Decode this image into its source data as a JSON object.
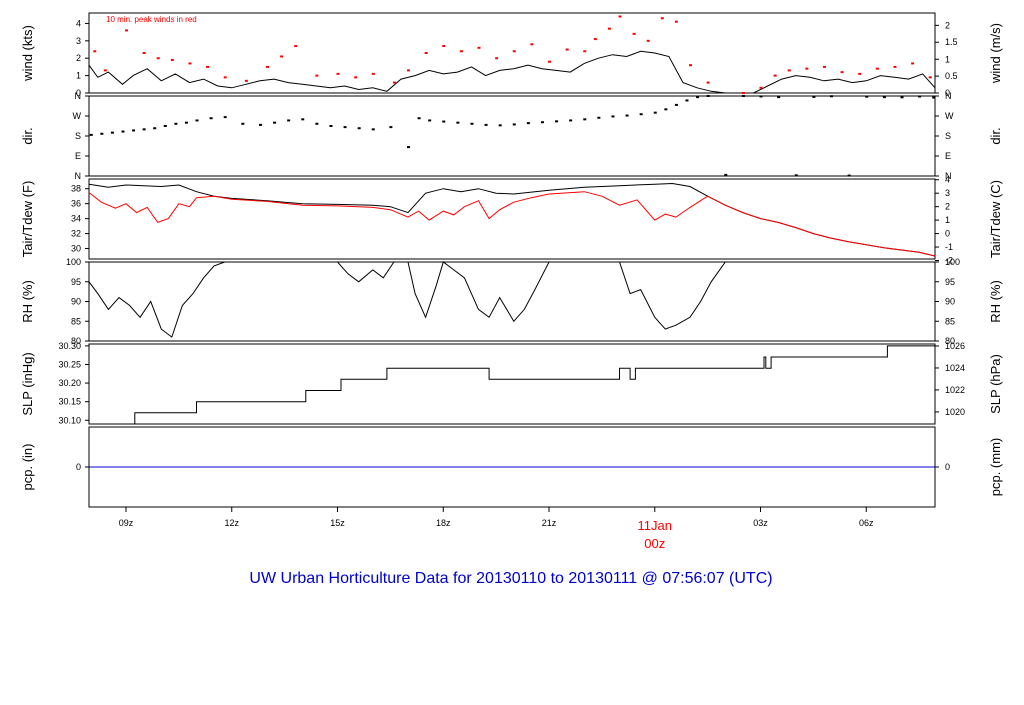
{
  "title": "UW Urban Horticulture Data for 20130110  to  20130111 @ 07:56:07  (UTC)",
  "colors": {
    "primary": "#000000",
    "secondary": "#ff0000",
    "title": "#0000cc",
    "precip": "#0000cc"
  },
  "x_axis": {
    "range_hours": [
      7.95,
      31.95
    ],
    "ticks": [
      {
        "hour": 9,
        "label": "09z"
      },
      {
        "hour": 12,
        "label": "12z"
      },
      {
        "hour": 15,
        "label": "15z"
      },
      {
        "hour": 18,
        "label": "18z"
      },
      {
        "hour": 21,
        "label": "21z"
      },
      {
        "hour": 24,
        "label": "00z"
      },
      {
        "hour": 27,
        "label": "03z"
      },
      {
        "hour": 30,
        "label": "06z"
      }
    ],
    "date_marker": {
      "hour": 24,
      "label": "11Jan",
      "sublabel": "00z"
    }
  },
  "chart_data": [
    {
      "id": "wind",
      "type": "line",
      "left_label": "wind (kts)",
      "right_label": "wind (m/s)",
      "annotation": "10 min. peak winds in red",
      "ylim": [
        0,
        4.6
      ],
      "left_ticks": [
        0,
        1,
        2,
        3,
        4
      ],
      "right_ticks": [
        {
          "value": 0,
          "label": "0"
        },
        {
          "value": 0.97,
          "label": "0.5"
        },
        {
          "value": 1.94,
          "label": "1"
        },
        {
          "value": 2.92,
          "label": "1.5"
        },
        {
          "value": 3.89,
          "label": "2"
        }
      ],
      "series": [
        {
          "role": "sustained",
          "style": "line",
          "x": [
            7.95,
            8.2,
            8.5,
            8.9,
            9.2,
            9.6,
            10.0,
            10.4,
            10.8,
            11.2,
            11.6,
            12.0,
            12.4,
            12.8,
            13.2,
            13.6,
            14.0,
            14.4,
            14.8,
            15.2,
            15.6,
            16.0,
            16.4,
            16.8,
            17.2,
            17.6,
            18.0,
            18.4,
            18.8,
            19.2,
            19.6,
            20.0,
            20.4,
            20.8,
            21.2,
            21.6,
            22.0,
            22.4,
            22.8,
            23.2,
            23.6,
            24.0,
            24.4,
            24.8,
            25.2,
            25.6,
            26.0,
            26.4,
            26.8,
            27.2,
            27.6,
            28.0,
            28.4,
            28.8,
            29.2,
            29.6,
            30.0,
            30.4,
            30.8,
            31.2,
            31.6,
            31.95
          ],
          "values": [
            1.6,
            0.9,
            1.2,
            0.5,
            1.0,
            1.4,
            0.7,
            1.1,
            0.6,
            0.8,
            0.4,
            0.3,
            0.5,
            0.7,
            0.8,
            0.6,
            0.5,
            0.4,
            0.3,
            0.4,
            0.2,
            0.3,
            0.1,
            0.8,
            1.0,
            1.3,
            1.1,
            1.2,
            1.5,
            1.0,
            1.3,
            1.4,
            1.6,
            1.4,
            1.3,
            1.2,
            1.7,
            2.0,
            2.2,
            2.1,
            2.4,
            2.3,
            2.1,
            0.6,
            0.3,
            0.1,
            0.0,
            0.0,
            0.0,
            0.4,
            0.8,
            1.0,
            0.9,
            0.7,
            0.8,
            0.6,
            0.7,
            1.0,
            0.9,
            0.8,
            1.1,
            0.3
          ]
        },
        {
          "role": "peak",
          "style": "points",
          "x": [
            8.1,
            8.4,
            9.0,
            9.5,
            9.9,
            10.3,
            10.8,
            11.3,
            11.8,
            12.4,
            13.0,
            13.4,
            13.8,
            14.4,
            15.0,
            15.5,
            16.0,
            16.6,
            17.0,
            17.5,
            18.0,
            18.5,
            19.0,
            19.5,
            20.0,
            20.5,
            21.0,
            21.5,
            22.0,
            22.3,
            22.7,
            23.0,
            23.4,
            23.8,
            24.2,
            24.6,
            25.0,
            25.5,
            26.5,
            27.0,
            27.4,
            27.8,
            28.3,
            28.8,
            29.3,
            29.8,
            30.3,
            30.8,
            31.3,
            31.8
          ],
          "values": [
            2.4,
            1.3,
            3.6,
            2.3,
            2.0,
            1.9,
            1.7,
            1.5,
            0.9,
            0.7,
            1.5,
            2.1,
            2.7,
            1.0,
            1.1,
            0.9,
            1.1,
            0.6,
            1.3,
            2.3,
            2.7,
            2.4,
            2.6,
            2.0,
            2.4,
            2.8,
            1.8,
            2.5,
            2.4,
            3.1,
            3.7,
            4.4,
            3.4,
            3.0,
            4.3,
            4.1,
            1.6,
            0.6,
            0.0,
            0.3,
            1.0,
            1.3,
            1.4,
            1.5,
            1.2,
            1.1,
            1.4,
            1.5,
            1.7,
            0.9
          ]
        }
      ]
    },
    {
      "id": "dir",
      "type": "scatter",
      "left_label": "dir.",
      "right_label": "dir.",
      "ylim": [
        0,
        360
      ],
      "ticks": [
        {
          "value": 0,
          "label": "N"
        },
        {
          "value": 90,
          "label": "E"
        },
        {
          "value": 180,
          "label": "S"
        },
        {
          "value": 270,
          "label": "W"
        },
        {
          "value": 360,
          "label": "N"
        }
      ],
      "series": [
        {
          "role": "direction",
          "style": "points",
          "x": [
            8.0,
            8.3,
            8.6,
            8.9,
            9.2,
            9.5,
            9.8,
            10.1,
            10.4,
            10.7,
            11.0,
            11.4,
            11.8,
            12.3,
            12.8,
            13.2,
            13.6,
            14.0,
            14.4,
            14.8,
            15.2,
            15.6,
            16.0,
            16.5,
            17.0,
            17.3,
            17.6,
            18.0,
            18.4,
            18.8,
            19.2,
            19.6,
            20.0,
            20.4,
            20.8,
            21.2,
            21.6,
            22.0,
            22.4,
            22.8,
            23.2,
            23.6,
            24.0,
            24.3,
            24.6,
            24.9,
            25.2,
            25.5,
            26.0,
            26.5,
            27.0,
            27.5,
            28.0,
            28.5,
            29.0,
            29.5,
            30.0,
            30.5,
            31.0,
            31.5,
            31.9
          ],
          "values": [
            185,
            190,
            195,
            200,
            205,
            210,
            215,
            225,
            235,
            240,
            250,
            260,
            265,
            235,
            230,
            240,
            250,
            255,
            235,
            225,
            220,
            215,
            210,
            220,
            130,
            260,
            250,
            245,
            240,
            235,
            230,
            228,
            232,
            238,
            242,
            246,
            250,
            255,
            262,
            268,
            272,
            278,
            285,
            300,
            320,
            340,
            355,
            360,
            5,
            360,
            358,
            355,
            3,
            356,
            359,
            2,
            357,
            355,
            354,
            358,
            353
          ]
        }
      ]
    },
    {
      "id": "temp",
      "type": "line",
      "left_label": "Tair/Tdew (F)",
      "right_label": "Tair/Tdew (C)",
      "ylim": [
        28.6,
        39.3
      ],
      "left_ticks": [
        30,
        32,
        34,
        36,
        38
      ],
      "right_ticks": [
        {
          "value": 28.4,
          "label": "-2"
        },
        {
          "value": 30.2,
          "label": "-1"
        },
        {
          "value": 32.0,
          "label": "0"
        },
        {
          "value": 33.8,
          "label": "1"
        },
        {
          "value": 35.6,
          "label": "2"
        },
        {
          "value": 37.4,
          "label": "3"
        },
        {
          "value": 39.2,
          "label": "4"
        }
      ],
      "series": [
        {
          "role": "air_temp",
          "style": "line",
          "x": [
            7.95,
            8.5,
            9.0,
            9.5,
            10.0,
            10.5,
            11.0,
            11.5,
            12.0,
            13.0,
            14.0,
            15.0,
            16.0,
            16.5,
            17.0,
            17.5,
            18.0,
            18.5,
            19.0,
            19.5,
            20.0,
            21.0,
            22.0,
            23.0,
            24.0,
            24.5,
            25.0,
            25.5,
            26.0,
            26.5,
            27.0,
            27.5,
            28.0,
            28.5,
            29.0,
            29.5,
            30.0,
            30.5,
            31.0,
            31.5,
            31.95
          ],
          "values": [
            38.6,
            38.2,
            38.5,
            38.4,
            38.3,
            38.5,
            37.6,
            37.0,
            36.7,
            36.4,
            36.0,
            35.9,
            35.8,
            35.6,
            34.8,
            37.4,
            38.0,
            37.6,
            38.0,
            37.4,
            37.3,
            37.8,
            38.2,
            38.4,
            38.6,
            38.7,
            38.3,
            37.0,
            35.8,
            34.8,
            34.0,
            33.5,
            32.8,
            32.0,
            31.4,
            30.9,
            30.5,
            30.1,
            29.8,
            29.5,
            29.0
          ]
        },
        {
          "role": "dew_point",
          "style": "line",
          "x": [
            7.95,
            8.3,
            8.7,
            9.0,
            9.3,
            9.6,
            9.9,
            10.2,
            10.5,
            10.8,
            11.0,
            11.5,
            12.0,
            13.0,
            14.0,
            15.0,
            16.0,
            16.5,
            17.0,
            17.3,
            17.6,
            18.0,
            18.3,
            18.6,
            19.0,
            19.3,
            19.6,
            20.0,
            20.5,
            21.0,
            22.0,
            22.5,
            23.0,
            23.5,
            24.0,
            24.3,
            24.6,
            25.0,
            25.5,
            26.0,
            26.5,
            27.0,
            27.5,
            28.0,
            28.5,
            29.0,
            29.5,
            30.0,
            30.5,
            31.0,
            31.5,
            31.95
          ],
          "values": [
            37.5,
            36.2,
            35.4,
            36.0,
            34.8,
            35.5,
            33.5,
            34.0,
            36.0,
            35.6,
            36.8,
            37.0,
            36.6,
            36.3,
            35.8,
            35.7,
            35.5,
            35.2,
            34.2,
            35.0,
            33.8,
            35.0,
            34.5,
            35.6,
            36.4,
            34.0,
            35.2,
            36.2,
            36.8,
            37.3,
            37.6,
            37.0,
            35.8,
            36.5,
            33.8,
            34.6,
            34.2,
            35.5,
            37.0,
            35.8,
            34.8,
            34.0,
            33.5,
            32.8,
            32.0,
            31.4,
            30.9,
            30.5,
            30.1,
            29.8,
            29.5,
            29.0
          ]
        }
      ]
    },
    {
      "id": "rh",
      "type": "line",
      "left_label": "RH (%)",
      "right_label": "RH (%)",
      "ylim": [
        80,
        100
      ],
      "left_ticks": [
        80,
        85,
        90,
        95,
        100
      ],
      "right_ticks": [
        {
          "value": 80,
          "label": "80"
        },
        {
          "value": 85,
          "label": "85"
        },
        {
          "value": 90,
          "label": "90"
        },
        {
          "value": 95,
          "label": "95"
        },
        {
          "value": 100,
          "label": "100"
        }
      ],
      "series": [
        {
          "role": "rh",
          "style": "line",
          "x": [
            7.95,
            8.2,
            8.5,
            8.8,
            9.1,
            9.4,
            9.7,
            10.0,
            10.3,
            10.6,
            10.9,
            11.2,
            11.5,
            11.8,
            12.0,
            13.0,
            14.0,
            15.0,
            15.3,
            15.6,
            16.0,
            16.3,
            16.6,
            17.0,
            17.2,
            17.5,
            17.8,
            18.0,
            18.3,
            18.6,
            19.0,
            19.3,
            19.6,
            20.0,
            20.3,
            20.6,
            21.0,
            22.0,
            22.5,
            23.0,
            23.3,
            23.6,
            24.0,
            24.3,
            24.6,
            25.0,
            25.3,
            25.6,
            26.0,
            27.0,
            28.0,
            29.0,
            30.0,
            31.0,
            31.95
          ],
          "values": [
            95,
            92,
            88,
            91,
            89,
            86,
            90,
            83,
            81,
            89,
            92,
            96,
            99,
            100,
            100,
            100,
            100,
            100,
            97,
            95,
            98,
            96,
            100,
            100,
            92,
            86,
            94,
            100,
            98,
            96,
            88,
            86,
            91,
            85,
            88,
            93,
            100,
            100,
            100,
            100,
            92,
            93,
            86,
            83,
            84,
            86,
            90,
            95,
            100,
            100,
            100,
            100,
            100,
            100,
            100
          ]
        }
      ]
    },
    {
      "id": "slp",
      "type": "line",
      "left_label": "SLP (inHg)",
      "right_label": "SLP (hPa)",
      "ylim": [
        30.09,
        30.305
      ],
      "left_ticks": [
        30.1,
        30.15,
        30.2,
        30.25,
        30.3
      ],
      "left_tick_labels": [
        "30.10",
        "30.15",
        "30.20",
        "30.25",
        "30.30"
      ],
      "right_ticks": [
        {
          "value": 30.1225,
          "label": "1020"
        },
        {
          "value": 30.1816,
          "label": "1022"
        },
        {
          "value": 30.2406,
          "label": "1024"
        },
        {
          "value": 30.2997,
          "label": "1026"
        }
      ],
      "series": [
        {
          "role": "slp",
          "style": "step",
          "x": [
            7.95,
            9.25,
            9.25,
            11.0,
            11.0,
            13.75,
            13.75,
            14.1,
            14.1,
            15.1,
            15.1,
            16.4,
            16.4,
            19.3,
            19.3,
            23.0,
            23.0,
            23.3,
            23.3,
            23.45,
            23.45,
            23.55,
            23.55,
            27.1,
            27.1,
            27.15,
            27.15,
            27.3,
            27.3,
            30.6,
            30.6,
            31.95
          ],
          "values": [
            30.09,
            30.09,
            30.12,
            30.12,
            30.15,
            30.15,
            30.15,
            30.15,
            30.18,
            30.18,
            30.21,
            30.21,
            30.24,
            30.24,
            30.21,
            30.21,
            30.24,
            30.24,
            30.21,
            30.21,
            30.24,
            30.24,
            30.24,
            30.24,
            30.27,
            30.27,
            30.24,
            30.24,
            30.27,
            30.27,
            30.3,
            30.3
          ]
        }
      ]
    },
    {
      "id": "precip",
      "type": "line",
      "left_label": "pcp. (in)",
      "right_label": "pcp. (mm)",
      "ylim": [
        -1,
        1
      ],
      "left_ticks": [
        0
      ],
      "right_ticks": [
        {
          "value": 0,
          "label": "0"
        }
      ],
      "series": [
        {
          "role": "precip",
          "style": "line",
          "x": [
            7.95,
            31.95
          ],
          "values": [
            0,
            0
          ]
        }
      ]
    }
  ]
}
